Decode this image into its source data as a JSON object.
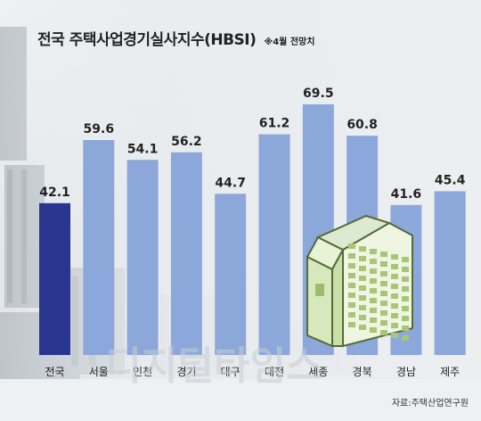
{
  "title": "전국 주택사업경기실사지수(HBSI)",
  "subtitle": "※4월 전망치",
  "source": "자료:주택산업연구원",
  "watermark": "디지털타임스",
  "colors": {
    "highlight_bar": "#2a3590",
    "bar": "#8ca8da",
    "label": "#222222"
  },
  "chart_data": {
    "type": "bar",
    "title": "전국 주택사업경기실사지수(HBSI)",
    "subtitle": "※4월 전망치",
    "categories": [
      "전국",
      "서울",
      "인천",
      "경기",
      "대구",
      "대전",
      "세종",
      "경북",
      "경남",
      "제주"
    ],
    "values": [
      42.1,
      59.6,
      54.1,
      56.2,
      44.7,
      61.2,
      69.5,
      60.8,
      41.6,
      45.4
    ],
    "highlight_index": 0,
    "xlabel": "",
    "ylabel": "",
    "ylim": [
      0,
      75
    ],
    "grid": false,
    "legend": "none"
  }
}
